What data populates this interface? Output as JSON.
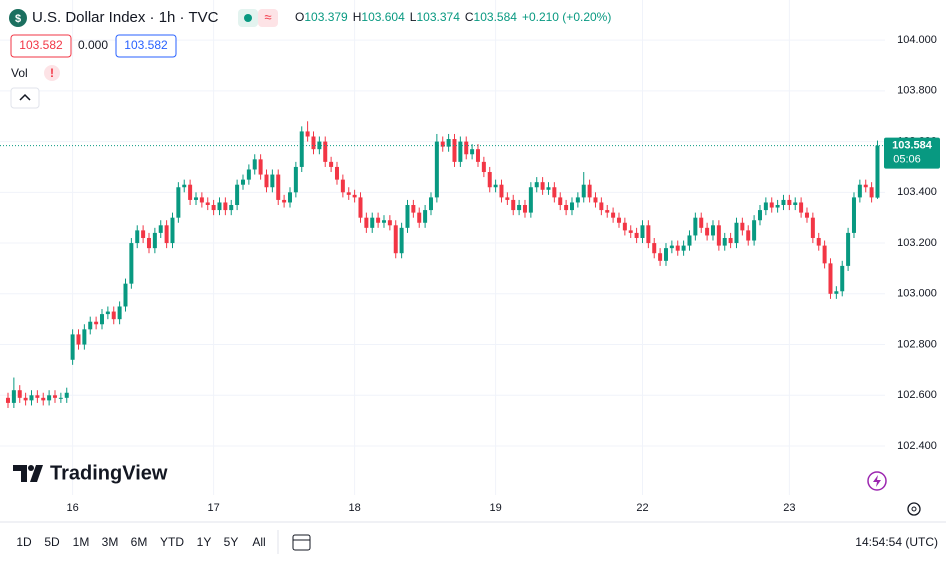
{
  "header": {
    "title": "U.S. Dollar Index · 1h · TVC",
    "ohlc": [
      {
        "label": "O",
        "value": "103.379"
      },
      {
        "label": "H",
        "value": "103.604"
      },
      {
        "label": "L",
        "value": "103.374"
      },
      {
        "label": "C",
        "value": "103.584"
      }
    ],
    "change": "+0.210 (+0.20%)",
    "bid": "103.582",
    "spread": "0.000",
    "ask": "103.582",
    "volume_label": "Vol",
    "brand": "TradingView"
  },
  "toolbar": {
    "ranges": [
      "1D",
      "5D",
      "1M",
      "3M",
      "6M",
      "YTD",
      "1Y",
      "5Y",
      "All"
    ],
    "clock": "14:54:54 (UTC)"
  },
  "chart_data": {
    "type": "candlestick",
    "up_color": "#089981",
    "down_color": "#f23645",
    "grid": true,
    "ylim": [
      102.207,
      104.158
    ],
    "yticks": [
      {
        "value": 102.4,
        "label": "102.400"
      },
      {
        "value": 102.6,
        "label": "102.600"
      },
      {
        "value": 102.8,
        "label": "102.800"
      },
      {
        "value": 103,
        "label": "103.000"
      },
      {
        "value": 103.2,
        "label": "103.200"
      },
      {
        "value": 103.4,
        "label": "103.400"
      },
      {
        "value": 103.6,
        "label": "103.600"
      },
      {
        "value": 103.8,
        "label": "103.800"
      },
      {
        "value": 104,
        "label": "104.000"
      }
    ],
    "xlim": [
      -1.36,
      149.28
    ],
    "xticks": [
      {
        "value": 11,
        "label": "16"
      },
      {
        "value": 35,
        "label": "17"
      },
      {
        "value": 59,
        "label": "18"
      },
      {
        "value": 83,
        "label": "19"
      },
      {
        "value": 108,
        "label": "22"
      },
      {
        "value": 133,
        "label": "23"
      }
    ],
    "last_price": 103.584,
    "countdown": "05:06",
    "open": [
      102.59,
      102.57,
      102.62,
      102.59,
      102.58,
      102.6,
      102.59,
      102.58,
      102.6,
      102.59,
      102.59,
      102.74,
      102.84,
      102.8,
      102.86,
      102.89,
      102.88,
      102.92,
      102.93,
      102.9,
      102.95,
      103.04,
      103.2,
      103.25,
      103.22,
      103.18,
      103.24,
      103.27,
      103.2,
      103.3,
      103.42,
      103.43,
      103.37,
      103.38,
      103.36,
      103.35,
      103.33,
      103.36,
      103.33,
      103.35,
      103.43,
      103.45,
      103.49,
      103.53,
      103.47,
      103.42,
      103.47,
      103.37,
      103.36,
      103.4,
      103.5,
      103.64,
      103.62,
      103.57,
      103.6,
      103.52,
      103.5,
      103.45,
      103.4,
      103.39,
      103.38,
      103.3,
      103.26,
      103.3,
      103.28,
      103.29,
      103.27,
      103.16,
      103.26,
      103.35,
      103.32,
      103.28,
      103.33,
      103.38,
      103.6,
      103.58,
      103.61,
      103.52,
      103.6,
      103.55,
      103.57,
      103.52,
      103.48,
      103.42,
      103.43,
      103.38,
      103.37,
      103.33,
      103.35,
      103.32,
      103.42,
      103.44,
      103.41,
      103.42,
      103.38,
      103.35,
      103.33,
      103.36,
      103.38,
      103.43,
      103.38,
      103.36,
      103.33,
      103.32,
      103.3,
      103.28,
      103.25,
      103.24,
      103.22,
      103.27,
      103.2,
      103.16,
      103.13,
      103.18,
      103.19,
      103.17,
      103.19,
      103.23,
      103.3,
      103.26,
      103.23,
      103.27,
      103.19,
      103.22,
      103.2,
      103.28,
      103.25,
      103.21,
      103.29,
      103.33,
      103.36,
      103.34,
      103.35,
      103.37,
      103.35,
      103.36,
      103.32,
      103.3,
      103.22,
      103.19,
      103.12,
      103.0,
      103.01,
      103.11,
      103.24,
      103.38,
      103.43,
      103.42,
      103.379
    ],
    "high": [
      102.61,
      102.67,
      102.64,
      102.61,
      102.62,
      102.62,
      102.61,
      102.62,
      102.62,
      102.61,
      102.63,
      102.86,
      102.86,
      102.88,
      102.91,
      102.91,
      102.94,
      102.95,
      102.95,
      102.97,
      103.06,
      103.22,
      103.27,
      103.27,
      103.24,
      103.26,
      103.29,
      103.29,
      103.32,
      103.44,
      103.45,
      103.45,
      103.4,
      103.4,
      103.38,
      103.37,
      103.38,
      103.38,
      103.37,
      103.45,
      103.47,
      103.51,
      103.55,
      103.55,
      103.49,
      103.49,
      103.49,
      103.39,
      103.42,
      103.52,
      103.66,
      103.68,
      103.64,
      103.62,
      103.62,
      103.54,
      103.52,
      103.47,
      103.42,
      103.41,
      103.4,
      103.32,
      103.32,
      103.32,
      103.31,
      103.31,
      103.29,
      103.28,
      103.37,
      103.37,
      103.34,
      103.35,
      103.4,
      103.63,
      103.62,
      103.63,
      103.63,
      103.62,
      103.62,
      103.59,
      103.59,
      103.54,
      103.5,
      103.45,
      103.45,
      103.4,
      103.39,
      103.37,
      103.37,
      103.44,
      103.46,
      103.46,
      103.44,
      103.44,
      103.4,
      103.37,
      103.38,
      103.4,
      103.48,
      103.45,
      103.4,
      103.38,
      103.35,
      103.34,
      103.32,
      103.3,
      103.27,
      103.26,
      103.29,
      103.29,
      103.22,
      103.18,
      103.2,
      103.21,
      103.21,
      103.21,
      103.25,
      103.32,
      103.32,
      103.28,
      103.29,
      103.29,
      103.24,
      103.24,
      103.3,
      103.3,
      103.27,
      103.31,
      103.35,
      103.38,
      103.38,
      103.37,
      103.39,
      103.39,
      103.38,
      103.38,
      103.34,
      103.32,
      103.24,
      103.21,
      103.14,
      103.03,
      103.13,
      103.26,
      103.4,
      103.45,
      103.45,
      103.44,
      103.604
    ],
    "low": [
      102.55,
      102.55,
      102.57,
      102.56,
      102.56,
      102.57,
      102.56,
      102.56,
      102.57,
      102.57,
      102.57,
      102.72,
      102.78,
      102.78,
      102.84,
      102.86,
      102.86,
      102.9,
      102.88,
      102.88,
      102.93,
      103.02,
      103.18,
      103.2,
      103.16,
      103.16,
      103.22,
      103.18,
      103.18,
      103.28,
      103.4,
      103.35,
      103.35,
      103.34,
      103.33,
      103.31,
      103.31,
      103.31,
      103.31,
      103.33,
      103.41,
      103.43,
      103.47,
      103.45,
      103.4,
      103.4,
      103.35,
      103.34,
      103.34,
      103.38,
      103.48,
      103.6,
      103.55,
      103.55,
      103.5,
      103.48,
      103.43,
      103.38,
      103.37,
      103.36,
      103.28,
      103.24,
      103.24,
      103.26,
      103.26,
      103.25,
      103.14,
      103.14,
      103.24,
      103.3,
      103.26,
      103.26,
      103.31,
      103.36,
      103.56,
      103.56,
      103.5,
      103.5,
      103.53,
      103.53,
      103.5,
      103.46,
      103.4,
      103.4,
      103.36,
      103.35,
      103.31,
      103.31,
      103.3,
      103.3,
      103.4,
      103.39,
      103.39,
      103.36,
      103.33,
      103.31,
      103.31,
      103.34,
      103.36,
      103.36,
      103.34,
      103.31,
      103.3,
      103.28,
      103.26,
      103.23,
      103.22,
      103.2,
      103.2,
      103.18,
      103.14,
      103.11,
      103.11,
      103.16,
      103.15,
      103.15,
      103.17,
      103.21,
      103.24,
      103.21,
      103.21,
      103.17,
      103.17,
      103.18,
      103.18,
      103.23,
      103.19,
      103.19,
      103.27,
      103.31,
      103.32,
      103.32,
      103.33,
      103.33,
      103.33,
      103.3,
      103.28,
      103.2,
      103.17,
      103.1,
      102.98,
      102.98,
      102.99,
      103.09,
      103.22,
      103.36,
      103.4,
      103.36,
      103.374
    ],
    "close": [
      102.57,
      102.62,
      102.59,
      102.58,
      102.6,
      102.59,
      102.58,
      102.6,
      102.59,
      102.59,
      102.61,
      102.84,
      102.8,
      102.86,
      102.89,
      102.88,
      102.92,
      102.93,
      102.9,
      102.95,
      103.04,
      103.2,
      103.25,
      103.22,
      103.18,
      103.24,
      103.27,
      103.2,
      103.3,
      103.42,
      103.43,
      103.37,
      103.38,
      103.36,
      103.35,
      103.33,
      103.36,
      103.33,
      103.35,
      103.43,
      103.45,
      103.49,
      103.53,
      103.47,
      103.42,
      103.47,
      103.37,
      103.36,
      103.4,
      103.5,
      103.64,
      103.62,
      103.57,
      103.6,
      103.52,
      103.5,
      103.45,
      103.4,
      103.39,
      103.38,
      103.3,
      103.26,
      103.3,
      103.28,
      103.29,
      103.27,
      103.16,
      103.26,
      103.35,
      103.32,
      103.28,
      103.33,
      103.38,
      103.6,
      103.58,
      103.61,
      103.52,
      103.6,
      103.55,
      103.57,
      103.52,
      103.48,
      103.42,
      103.43,
      103.38,
      103.37,
      103.33,
      103.35,
      103.32,
      103.42,
      103.44,
      103.41,
      103.42,
      103.38,
      103.35,
      103.33,
      103.36,
      103.38,
      103.43,
      103.38,
      103.36,
      103.33,
      103.32,
      103.3,
      103.28,
      103.25,
      103.24,
      103.22,
      103.27,
      103.2,
      103.16,
      103.13,
      103.18,
      103.19,
      103.17,
      103.19,
      103.23,
      103.3,
      103.26,
      103.23,
      103.27,
      103.19,
      103.22,
      103.2,
      103.28,
      103.25,
      103.21,
      103.29,
      103.33,
      103.36,
      103.34,
      103.35,
      103.37,
      103.35,
      103.36,
      103.32,
      103.3,
      103.22,
      103.19,
      103.12,
      103.0,
      103.01,
      103.11,
      103.24,
      103.38,
      103.43,
      103.42,
      103.38,
      103.584
    ]
  }
}
